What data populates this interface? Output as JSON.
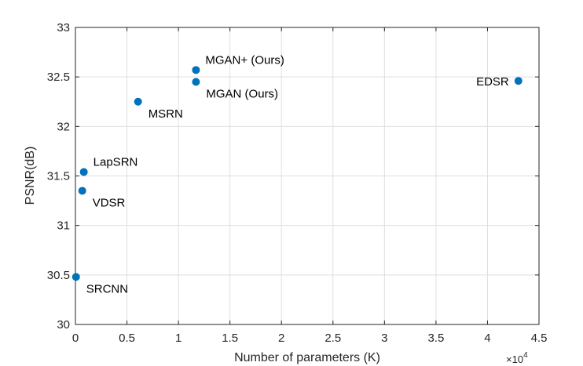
{
  "chart_data": {
    "type": "scatter",
    "title": "",
    "xlabel": "Number of parameters (K)",
    "ylabel": "PSNR(dB)",
    "x_multiplier_label": "×10",
    "x_multiplier_exponent": "4",
    "xlim": [
      0,
      4.5
    ],
    "ylim": [
      30,
      33
    ],
    "xticks": [
      "0",
      "0.5",
      "1",
      "1.5",
      "2",
      "2.5",
      "3",
      "3.5",
      "4",
      "4.5"
    ],
    "yticks": [
      "30",
      "30.5",
      "31",
      "31.5",
      "32",
      "32.5",
      "33"
    ],
    "grid": true,
    "marker_color": "#0072BD",
    "points": [
      {
        "label": "SRCNN",
        "x": 0.0057,
        "y": 30.48,
        "label_side": "below-right"
      },
      {
        "label": "VDSR",
        "x": 0.0665,
        "y": 31.35,
        "label_side": "below-right"
      },
      {
        "label": "LapSRN",
        "x": 0.0813,
        "y": 31.54,
        "label_side": "above-right"
      },
      {
        "label": "MSRN",
        "x": 0.6078,
        "y": 32.25,
        "label_side": "below-right"
      },
      {
        "label": "MGAN+ (Ours)",
        "x": 1.17,
        "y": 32.57,
        "label_side": "above-right"
      },
      {
        "label": "MGAN (Ours)",
        "x": 1.17,
        "y": 32.45,
        "label_side": "below-right"
      },
      {
        "label": "EDSR",
        "x": 4.3,
        "y": 32.46,
        "label_side": "left"
      }
    ]
  }
}
